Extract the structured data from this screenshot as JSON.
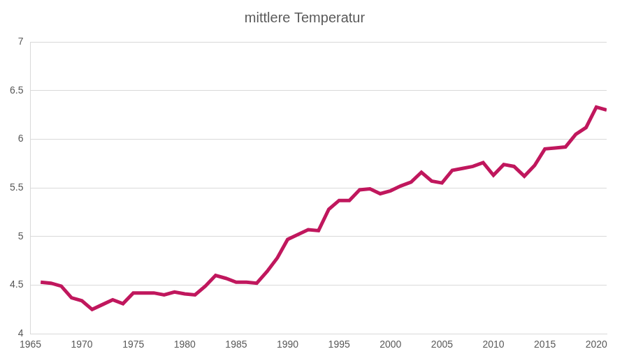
{
  "chart_data": {
    "type": "line",
    "title": "mittlere Temperatur",
    "x": [
      1966,
      1967,
      1968,
      1969,
      1970,
      1971,
      1972,
      1973,
      1974,
      1975,
      1976,
      1977,
      1978,
      1979,
      1980,
      1981,
      1982,
      1983,
      1984,
      1985,
      1986,
      1987,
      1988,
      1989,
      1990,
      1991,
      1992,
      1993,
      1994,
      1995,
      1996,
      1997,
      1998,
      1999,
      2000,
      2001,
      2002,
      2003,
      2004,
      2005,
      2006,
      2007,
      2008,
      2009,
      2010,
      2011,
      2012,
      2013,
      2014,
      2015,
      2016,
      2017,
      2018,
      2019,
      2020,
      2021
    ],
    "values": [
      4.53,
      4.52,
      4.49,
      4.37,
      4.34,
      4.25,
      4.3,
      4.35,
      4.31,
      4.42,
      4.42,
      4.42,
      4.4,
      4.43,
      4.41,
      4.4,
      4.49,
      4.6,
      4.57,
      4.53,
      4.53,
      4.52,
      4.64,
      4.78,
      4.97,
      5.02,
      5.07,
      5.06,
      5.28,
      5.37,
      5.37,
      5.48,
      5.49,
      5.44,
      5.47,
      5.52,
      5.56,
      5.66,
      5.57,
      5.55,
      5.68,
      5.7,
      5.72,
      5.76,
      5.63,
      5.74,
      5.72,
      5.62,
      5.73,
      5.9,
      5.91,
      5.92,
      6.05,
      6.12,
      6.33,
      6.3
    ],
    "color": "#c0175d",
    "marker": "none",
    "xlim": [
      1965,
      2021
    ],
    "xticks": [
      1965,
      1970,
      1975,
      1980,
      1985,
      1990,
      1995,
      2000,
      2005,
      2010,
      2015,
      2020
    ],
    "ylim": [
      4,
      7
    ],
    "yticks": [
      4,
      4.5,
      5,
      5.5,
      6,
      6.5,
      7
    ],
    "grid": true
  }
}
